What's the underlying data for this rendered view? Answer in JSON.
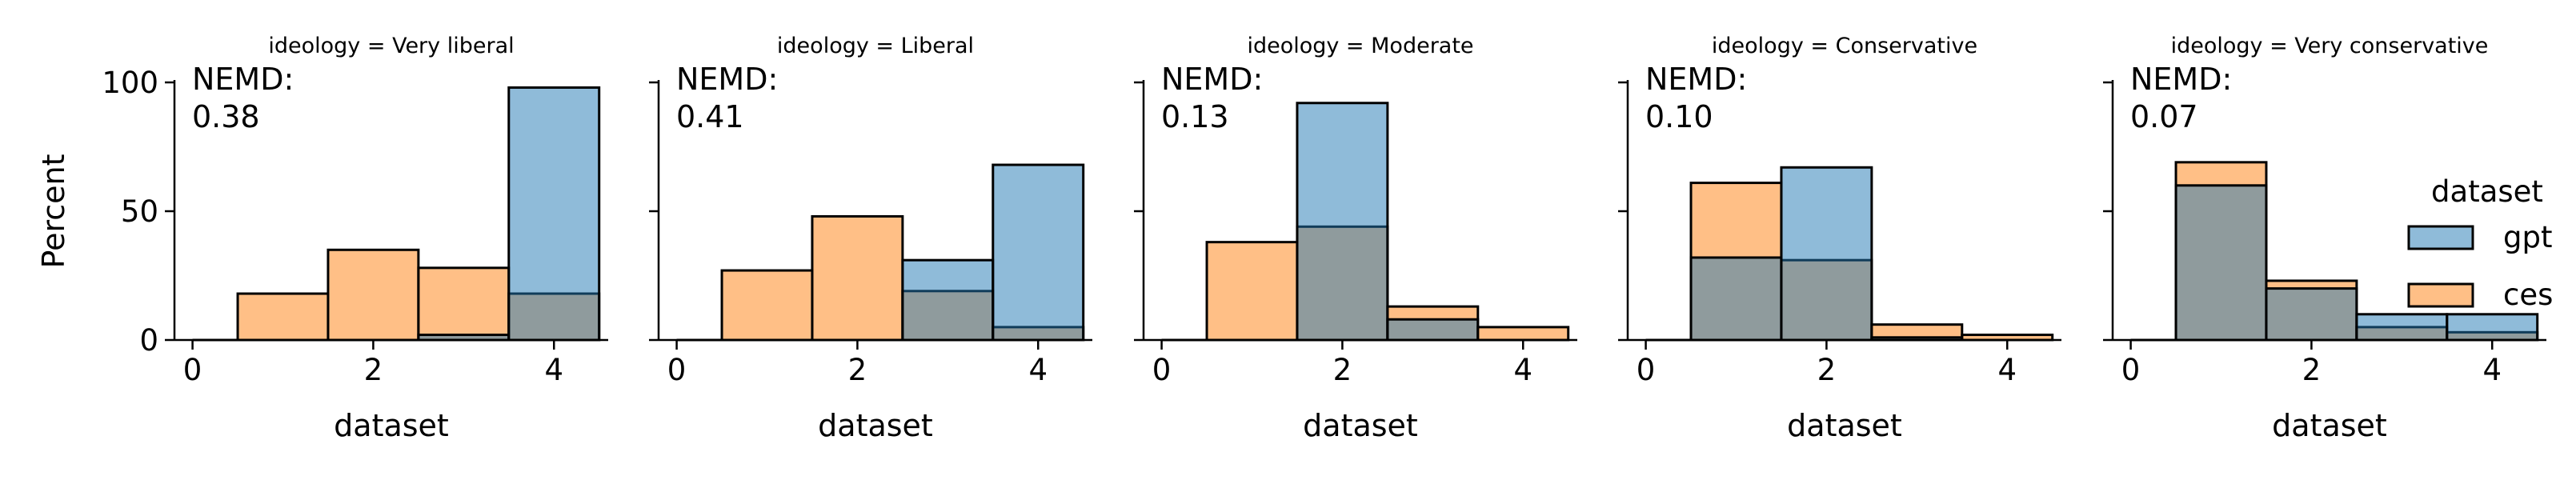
{
  "chart_data": {
    "type": "bar",
    "chart_kind": "overlapping histograms, faceted",
    "ylabel": "Percent",
    "xlabel": "dataset",
    "xlim": [
      -0.2,
      4.6
    ],
    "ylim": [
      0,
      100
    ],
    "x_ticks": [
      0,
      2,
      4
    ],
    "y_ticks": [
      0,
      50,
      100
    ],
    "bins": [
      1,
      2,
      3,
      4
    ],
    "legend": {
      "title": "dataset",
      "placement": "right",
      "entries": [
        {
          "name": "gpt",
          "color": "#1f77b4"
        },
        {
          "name": "ces",
          "color": "#ff7f0e"
        }
      ]
    },
    "overlap_color": "#8c979d",
    "facets": [
      {
        "title": "ideology = Very liberal",
        "annotation": [
          "NEMD:",
          "0.38"
        ],
        "series": [
          {
            "name": "gpt",
            "values": [
              0,
              0,
              2,
              98
            ]
          },
          {
            "name": "ces",
            "values": [
              18,
              35,
              28,
              18
            ]
          }
        ]
      },
      {
        "title": "ideology = Liberal",
        "annotation": [
          "NEMD:",
          "0.41"
        ],
        "series": [
          {
            "name": "gpt",
            "values": [
              0,
              0,
              31,
              68
            ]
          },
          {
            "name": "ces",
            "values": [
              27,
              48,
              19,
              5
            ]
          }
        ]
      },
      {
        "title": "ideology = Moderate",
        "annotation": [
          "NEMD:",
          "0.13"
        ],
        "series": [
          {
            "name": "gpt",
            "values": [
              0,
              92,
              8,
              0
            ]
          },
          {
            "name": "ces",
            "values": [
              38,
              44,
              13,
              5
            ]
          }
        ]
      },
      {
        "title": "ideology = Conservative",
        "annotation": [
          "NEMD:",
          "0.10"
        ],
        "series": [
          {
            "name": "gpt",
            "values": [
              32,
              67,
              1,
              0
            ]
          },
          {
            "name": "ces",
            "values": [
              61,
              31,
              6,
              2
            ]
          }
        ]
      },
      {
        "title": "ideology = Very conservative",
        "annotation": [
          "NEMD:",
          "0.07"
        ],
        "series": [
          {
            "name": "gpt",
            "values": [
              60,
              20,
              10,
              10
            ]
          },
          {
            "name": "ces",
            "values": [
              69,
              23,
              5,
              3
            ]
          }
        ]
      }
    ]
  }
}
